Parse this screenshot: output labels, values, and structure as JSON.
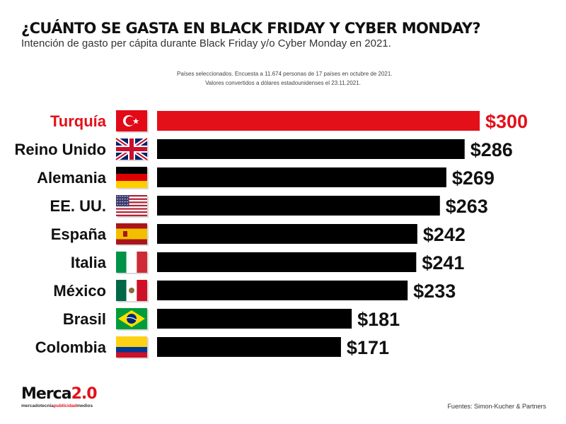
{
  "header": {
    "title": "¿CUÁNTO SE GASTA EN BLACK FRIDAY Y CYBER MONDAY?",
    "subtitle": "Intención de gasto per cápita durante Black Friday y/o Cyber Monday en 2021.",
    "note_line1": "Países seleccionados. Encuesta a 11.674 personas de 17 países en octubre de 2021.",
    "note_line2": "Valores convertidos a dólares estadounidenses el 23.11.2021."
  },
  "chart_data": {
    "type": "bar",
    "orientation": "horizontal",
    "categories": [
      "Turquía",
      "Reino Unido",
      "Alemania",
      "EE. UU.",
      "España",
      "Italia",
      "México",
      "Brasil",
      "Colombia"
    ],
    "values": [
      300,
      286,
      269,
      263,
      242,
      241,
      233,
      181,
      171
    ],
    "value_labels": [
      "$300",
      "$286",
      "$269",
      "$263",
      "$242",
      "$241",
      "$233",
      "$181",
      "$171"
    ],
    "flags": [
      "turkey-flag",
      "uk-flag",
      "germany-flag",
      "usa-flag",
      "spain-flag",
      "italy-flag",
      "mexico-flag",
      "brazil-flag",
      "colombia-flag"
    ],
    "highlight_index": 0,
    "colors": {
      "highlight": "#e3101a",
      "default": "#000000"
    },
    "xlim": [
      0,
      300
    ],
    "grid": false,
    "legend": "none"
  },
  "footer": {
    "logo_main": "Merca",
    "logo_version": "2.0",
    "logo_tag_a": "mercadotecnia",
    "logo_tag_b": "publicidad",
    "logo_tag_c": "medios",
    "source": "Fuentes: Simon-Kucher & Partners"
  }
}
